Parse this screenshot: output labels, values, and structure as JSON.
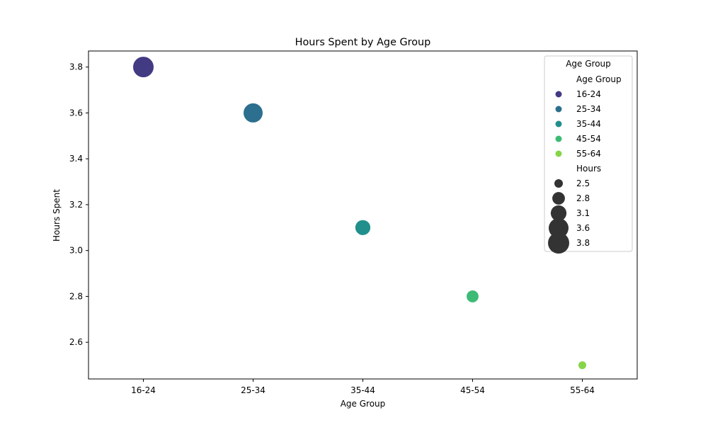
{
  "chart_data": {
    "type": "scatter",
    "title": "Hours Spent by Age Group",
    "xlabel": "Age Group",
    "ylabel": "Hours Spent",
    "categories": [
      "16-24",
      "25-34",
      "35-44",
      "45-54",
      "55-64"
    ],
    "values": [
      3.8,
      3.6,
      3.1,
      2.8,
      2.5
    ],
    "colors": [
      "#433a84",
      "#2c6f8e",
      "#218f8c",
      "#3dbb74",
      "#86d549"
    ],
    "ylim": [
      2.44,
      3.87
    ],
    "yticks": [
      "2.6",
      "2.8",
      "3.0",
      "3.2",
      "3.4",
      "3.6",
      "3.8"
    ],
    "grid": false,
    "legend": {
      "placement": "top-right",
      "title": "Age Group",
      "hue_header": "Age Group",
      "hue_entries": [
        "16-24",
        "25-34",
        "35-44",
        "45-54",
        "55-64"
      ],
      "size_header": "Hours",
      "size_entries": [
        "2.5",
        "2.8",
        "3.1",
        "3.6",
        "3.8"
      ]
    }
  }
}
